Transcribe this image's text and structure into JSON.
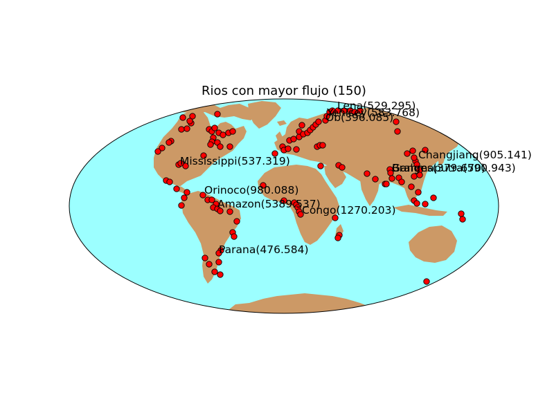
{
  "title": "Rios con mayor flujo (150)",
  "colors": {
    "ocean": "#9cffff",
    "land": "#cc9966",
    "marker": "#ff0000",
    "marker_edge": "#000000",
    "outline": "#000000"
  },
  "projection": "hammer",
  "labels": [
    {
      "key": "lena",
      "text": "Lena(529.295)"
    },
    {
      "key": "yenisey",
      "text": "Yenisey(583.768)"
    },
    {
      "key": "ob",
      "text": "Ob(396.085)"
    },
    {
      "key": "changjiang",
      "text": "Changjiang(905.141)"
    },
    {
      "key": "ganges",
      "text": "Ganges(379.670)"
    },
    {
      "key": "brahmaputra",
      "text": "Brahmaputra(590.943)"
    },
    {
      "key": "mississippi",
      "text": "Mississippi(537.319)"
    },
    {
      "key": "orinoco",
      "text": "Orinoco(980.088)"
    },
    {
      "key": "amazon",
      "text": "Amazon(5389.537)"
    },
    {
      "key": "congo",
      "text": "Congo(1270.203)"
    },
    {
      "key": "parana",
      "text": "Parana(476.584)"
    }
  ]
}
